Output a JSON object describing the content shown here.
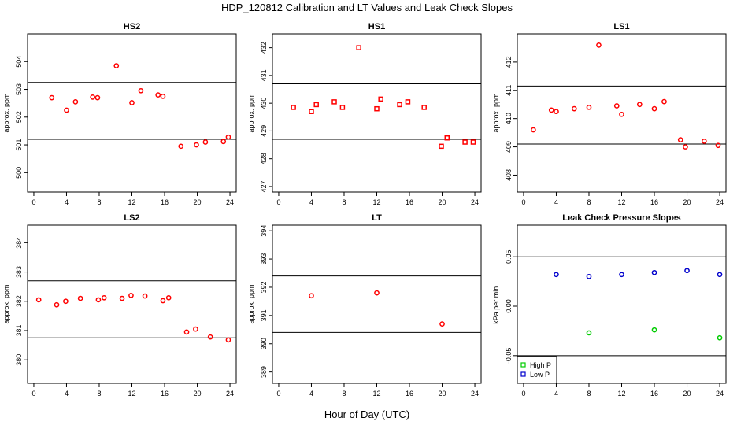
{
  "figure": {
    "title": "HDP_120812  Calibration and LT Values and Leak Check Slopes",
    "xlabel": "Hour of Day (UTC)"
  },
  "chart_data": [
    {
      "id": "hs2",
      "type": "scatter",
      "title": "HS2",
      "ylabel": "approx. ppm",
      "xlim": [
        0,
        24
      ],
      "xticks": [
        0,
        4,
        8,
        12,
        16,
        20,
        24
      ],
      "ylim": [
        499.3,
        505.0
      ],
      "yticks": [
        500,
        501,
        502,
        503,
        504
      ],
      "hlines": [
        503.25,
        501.2
      ],
      "series": [
        {
          "name": "HS2",
          "color": "#ff0000",
          "marker": "circle",
          "x": [
            2.2,
            4.0,
            5.1,
            7.2,
            7.8,
            10.1,
            12.0,
            13.1,
            15.2,
            15.8,
            18.0,
            19.9,
            21.0,
            23.2,
            23.8
          ],
          "y": [
            502.7,
            502.25,
            502.55,
            502.72,
            502.7,
            503.85,
            502.52,
            502.95,
            502.8,
            502.75,
            500.95,
            501.0,
            501.1,
            501.12,
            501.28
          ]
        }
      ]
    },
    {
      "id": "hs1",
      "type": "scatter",
      "title": "HS1",
      "ylabel": "approx. ppm",
      "xlim": [
        0,
        24
      ],
      "xticks": [
        0,
        4,
        8,
        12,
        16,
        20,
        24
      ],
      "ylim": [
        426.8,
        432.5
      ],
      "yticks": [
        427,
        428,
        429,
        430,
        431,
        432
      ],
      "hlines": [
        430.7,
        428.7
      ],
      "series": [
        {
          "name": "HS1",
          "color": "#ff0000",
          "marker": "square",
          "x": [
            1.8,
            4.0,
            4.6,
            6.8,
            7.8,
            9.8,
            12.0,
            12.5,
            14.8,
            15.8,
            17.8,
            19.9,
            20.6,
            22.8,
            23.8
          ],
          "y": [
            429.85,
            429.7,
            429.95,
            430.05,
            429.85,
            432.0,
            429.8,
            430.15,
            429.95,
            430.05,
            429.85,
            428.45,
            428.75,
            428.6,
            428.6
          ]
        }
      ]
    },
    {
      "id": "ls1",
      "type": "scatter",
      "title": "LS1",
      "ylabel": "approx. ppm",
      "xlim": [
        0,
        24
      ],
      "xticks": [
        0,
        4,
        8,
        12,
        16,
        20,
        24
      ],
      "ylim": [
        407.4,
        413.0
      ],
      "yticks": [
        408,
        409,
        410,
        411,
        412
      ],
      "hlines": [
        411.15,
        409.1
      ],
      "series": [
        {
          "name": "LS1",
          "color": "#ff0000",
          "marker": "circle",
          "x": [
            1.2,
            3.4,
            4.0,
            6.2,
            8.0,
            9.2,
            11.4,
            12.0,
            14.2,
            16.0,
            17.2,
            19.2,
            19.8,
            22.1,
            23.8
          ],
          "y": [
            409.6,
            410.3,
            410.25,
            410.35,
            410.4,
            412.6,
            410.45,
            410.15,
            410.5,
            410.35,
            410.6,
            409.25,
            409.0,
            409.2,
            409.05
          ]
        }
      ]
    },
    {
      "id": "ls2",
      "type": "scatter",
      "title": "LS2",
      "ylabel": "approx. ppm",
      "xlim": [
        0,
        24
      ],
      "xticks": [
        0,
        4,
        8,
        12,
        16,
        20,
        24
      ],
      "ylim": [
        379.2,
        384.6
      ],
      "yticks": [
        380,
        381,
        382,
        383,
        384
      ],
      "hlines": [
        382.7,
        380.75
      ],
      "series": [
        {
          "name": "LS2",
          "color": "#ff0000",
          "marker": "circle",
          "x": [
            0.6,
            2.8,
            3.9,
            5.7,
            7.9,
            8.6,
            10.8,
            11.9,
            13.6,
            15.8,
            16.5,
            18.7,
            19.8,
            21.6,
            23.8
          ],
          "y": [
            382.05,
            381.88,
            382.0,
            382.1,
            382.05,
            382.12,
            382.1,
            382.2,
            382.18,
            382.02,
            382.12,
            380.95,
            381.05,
            380.78,
            380.68
          ]
        }
      ]
    },
    {
      "id": "lt",
      "type": "scatter",
      "title": "LT",
      "ylabel": "approx. ppm",
      "xlim": [
        0,
        24
      ],
      "xticks": [
        0,
        4,
        8,
        12,
        16,
        20,
        24
      ],
      "ylim": [
        388.6,
        394.2
      ],
      "yticks": [
        389,
        390,
        391,
        392,
        393,
        394
      ],
      "hlines": [
        392.4,
        390.4
      ],
      "series": [
        {
          "name": "LT",
          "color": "#ff0000",
          "marker": "circle",
          "x": [
            4.0,
            12.0,
            20.0
          ],
          "y": [
            391.7,
            391.8,
            390.7
          ]
        }
      ]
    },
    {
      "id": "leak",
      "type": "scatter",
      "title": "Leak Check Pressure Slopes",
      "ylabel": "kPa per min.",
      "xlim": [
        0,
        24
      ],
      "xticks": [
        0,
        4,
        8,
        12,
        16,
        20,
        24
      ],
      "ylim": [
        -0.078,
        0.082
      ],
      "yticks": [
        -0.05,
        0.0,
        0.05
      ],
      "ytick_labels": [
        "-0.05",
        "0.00",
        "0.05"
      ],
      "hlines": [
        0.05,
        -0.05
      ],
      "legend": {
        "position": "bottom-left"
      },
      "series": [
        {
          "name": "High P",
          "color": "#00cc00",
          "marker": "circle",
          "x": [
            8,
            16,
            24
          ],
          "y": [
            -0.027,
            -0.024,
            -0.032
          ]
        },
        {
          "name": "Low P",
          "color": "#0000cc",
          "marker": "circle",
          "x": [
            4,
            8,
            12,
            16,
            20,
            24
          ],
          "y": [
            0.032,
            0.03,
            0.032,
            0.034,
            0.036,
            0.032
          ]
        }
      ]
    }
  ]
}
